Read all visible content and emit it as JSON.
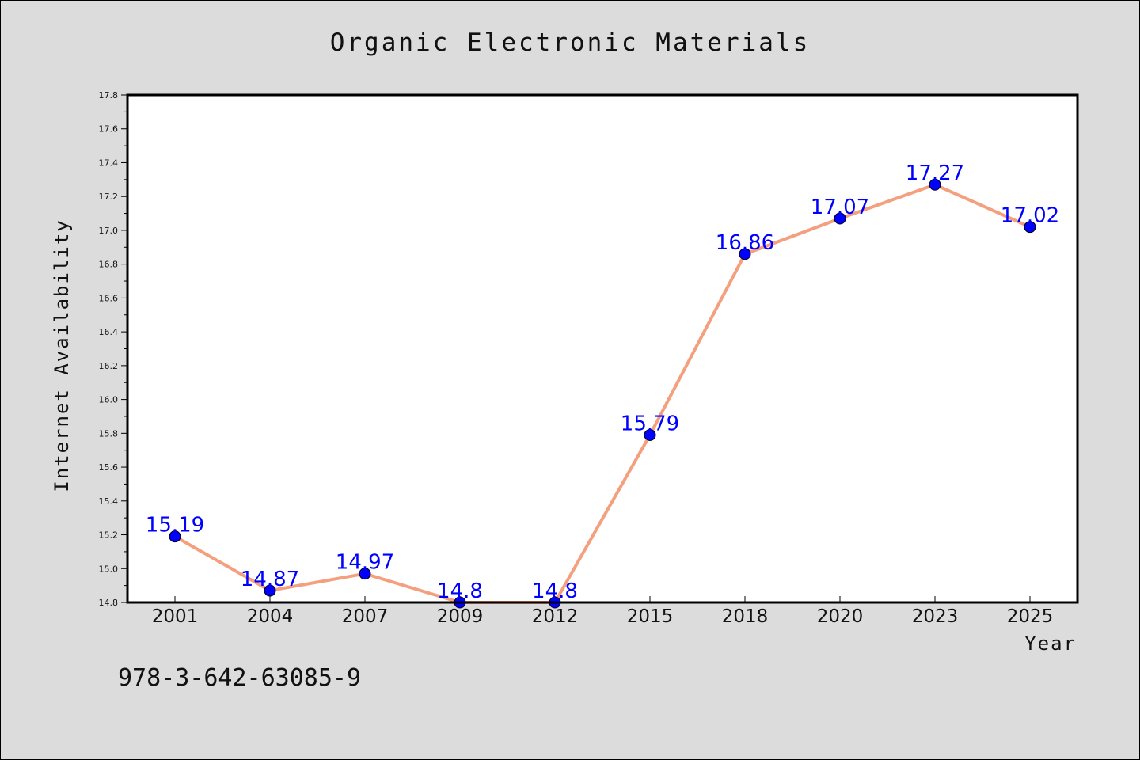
{
  "chart_data": {
    "type": "line",
    "title": "Organic Electronic Materials",
    "xlabel": "Year",
    "ylabel": "Internet Availability",
    "categories": [
      "2001",
      "2004",
      "2007",
      "2009",
      "2012",
      "2015",
      "2018",
      "2020",
      "2023",
      "2025"
    ],
    "values": [
      15.19,
      14.87,
      14.97,
      14.8,
      14.8,
      15.79,
      16.86,
      17.07,
      17.27,
      17.02
    ],
    "data_labels": [
      "15.19",
      "14.87",
      "14.97",
      "14.8",
      "14.8",
      "15.79",
      "16.86",
      "17.07",
      "17.27",
      "17.02"
    ],
    "ylim": [
      14.8,
      17.8
    ],
    "yticks": [
      "14.8",
      "15.0",
      "15.2",
      "15.4",
      "15.6",
      "15.8",
      "16.0",
      "16.2",
      "16.4",
      "16.6",
      "16.8",
      "17.0",
      "17.2",
      "17.4",
      "17.6",
      "17.8"
    ],
    "grid": false,
    "legend": "none",
    "colors": {
      "line": "#f4a07e",
      "marker": "#0000ff",
      "data_label": "#0000ff",
      "plot_background": "#ffffff",
      "figure_background": "#dcdcdc"
    }
  },
  "footer": {
    "isbn": "978-3-642-63085-9"
  }
}
